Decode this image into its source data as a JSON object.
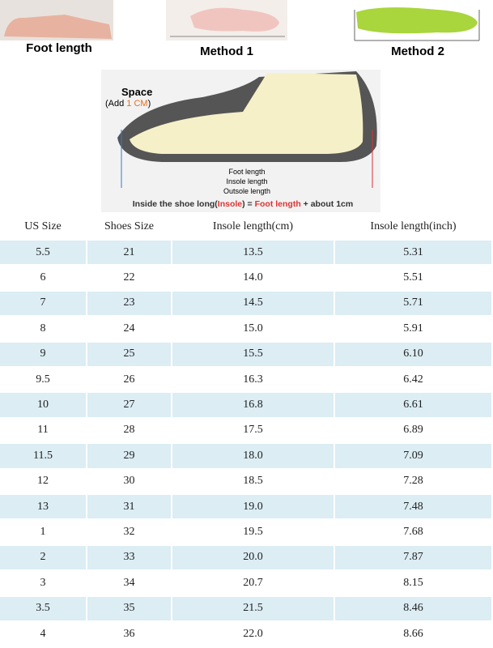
{
  "header": {
    "captions": [
      "Foot length",
      "Method 1",
      "Method 2"
    ],
    "diagram": {
      "space": "Space",
      "add": [
        "(Add ",
        "1 CM",
        ")"
      ],
      "lines": [
        "Foot length",
        "Insole length",
        "Outsole length"
      ],
      "formula": [
        "Inside the shoe long(",
        "Insole",
        ") = ",
        "Foot length",
        " + about 1cm"
      ]
    }
  },
  "table": {
    "columns": [
      "US Size",
      "Shoes Size",
      "Insole length(cm)",
      "Insole length(inch)"
    ],
    "rows": [
      [
        "5.5",
        "21",
        "13.5",
        "5.31"
      ],
      [
        "6",
        "22",
        "14.0",
        "5.51"
      ],
      [
        "7",
        "23",
        "14.5",
        "5.71"
      ],
      [
        "8",
        "24",
        "15.0",
        "5.91"
      ],
      [
        "9",
        "25",
        "15.5",
        "6.10"
      ],
      [
        "9.5",
        "26",
        "16.3",
        "6.42"
      ],
      [
        "10",
        "27",
        "16.8",
        "6.61"
      ],
      [
        "11",
        "28",
        "17.5",
        "6.89"
      ],
      [
        "11.5",
        "29",
        "18.0",
        "7.09"
      ],
      [
        "12",
        "30",
        "18.5",
        "7.28"
      ],
      [
        "13",
        "31",
        "19.0",
        "7.48"
      ],
      [
        "1",
        "32",
        "19.5",
        "7.68"
      ],
      [
        "2",
        "33",
        "20.0",
        "7.87"
      ],
      [
        "3",
        "34",
        "20.7",
        "8.15"
      ],
      [
        "3.5",
        "35",
        "21.5",
        "8.46"
      ],
      [
        "4",
        "36",
        "22.0",
        "8.66"
      ]
    ]
  }
}
